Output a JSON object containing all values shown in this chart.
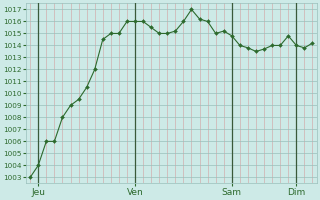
{
  "x_values": [
    0,
    1,
    2,
    3,
    4,
    5,
    6,
    7,
    8,
    9,
    10,
    11,
    12,
    13,
    14,
    15,
    16,
    17,
    18,
    19,
    20,
    21,
    22,
    23,
    24,
    25,
    26,
    27,
    28,
    29,
    30,
    31,
    32,
    33,
    34,
    35
  ],
  "y_values": [
    1003,
    1004,
    1006,
    1006,
    1008,
    1009,
    1009.5,
    1010.5,
    1012,
    1014.5,
    1015,
    1015,
    1016,
    1016,
    1016,
    1015.5,
    1015,
    1015,
    1015.2,
    1016,
    1017,
    1016.2,
    1016,
    1015,
    1015.2,
    1014.8,
    1014,
    1013.8,
    1013.5,
    1013.7,
    1014,
    1014,
    1014.8,
    1014,
    1013.8,
    1014.2
  ],
  "x_ticks_labels": [
    "Jeu",
    "Ven",
    "Sam",
    "Dim"
  ],
  "x_ticks_pos": [
    1,
    13,
    25,
    33
  ],
  "x_vlines": [
    1,
    13,
    25,
    33
  ],
  "y_min": 1003,
  "y_max": 1017,
  "line_color": "#2d6a2d",
  "marker_color": "#2d6a2d",
  "bg_color": "#cdeae7",
  "grid_color_major": "#9abfbb",
  "grid_color_minor": "#b8d8d4",
  "grid_color_red": "#d4a0a0",
  "tick_label_color": "#2d6a2d",
  "vline_color": "#3a5a3a",
  "xlabel_fontsize": 6.5,
  "ylabel_fontsize": 5.5
}
